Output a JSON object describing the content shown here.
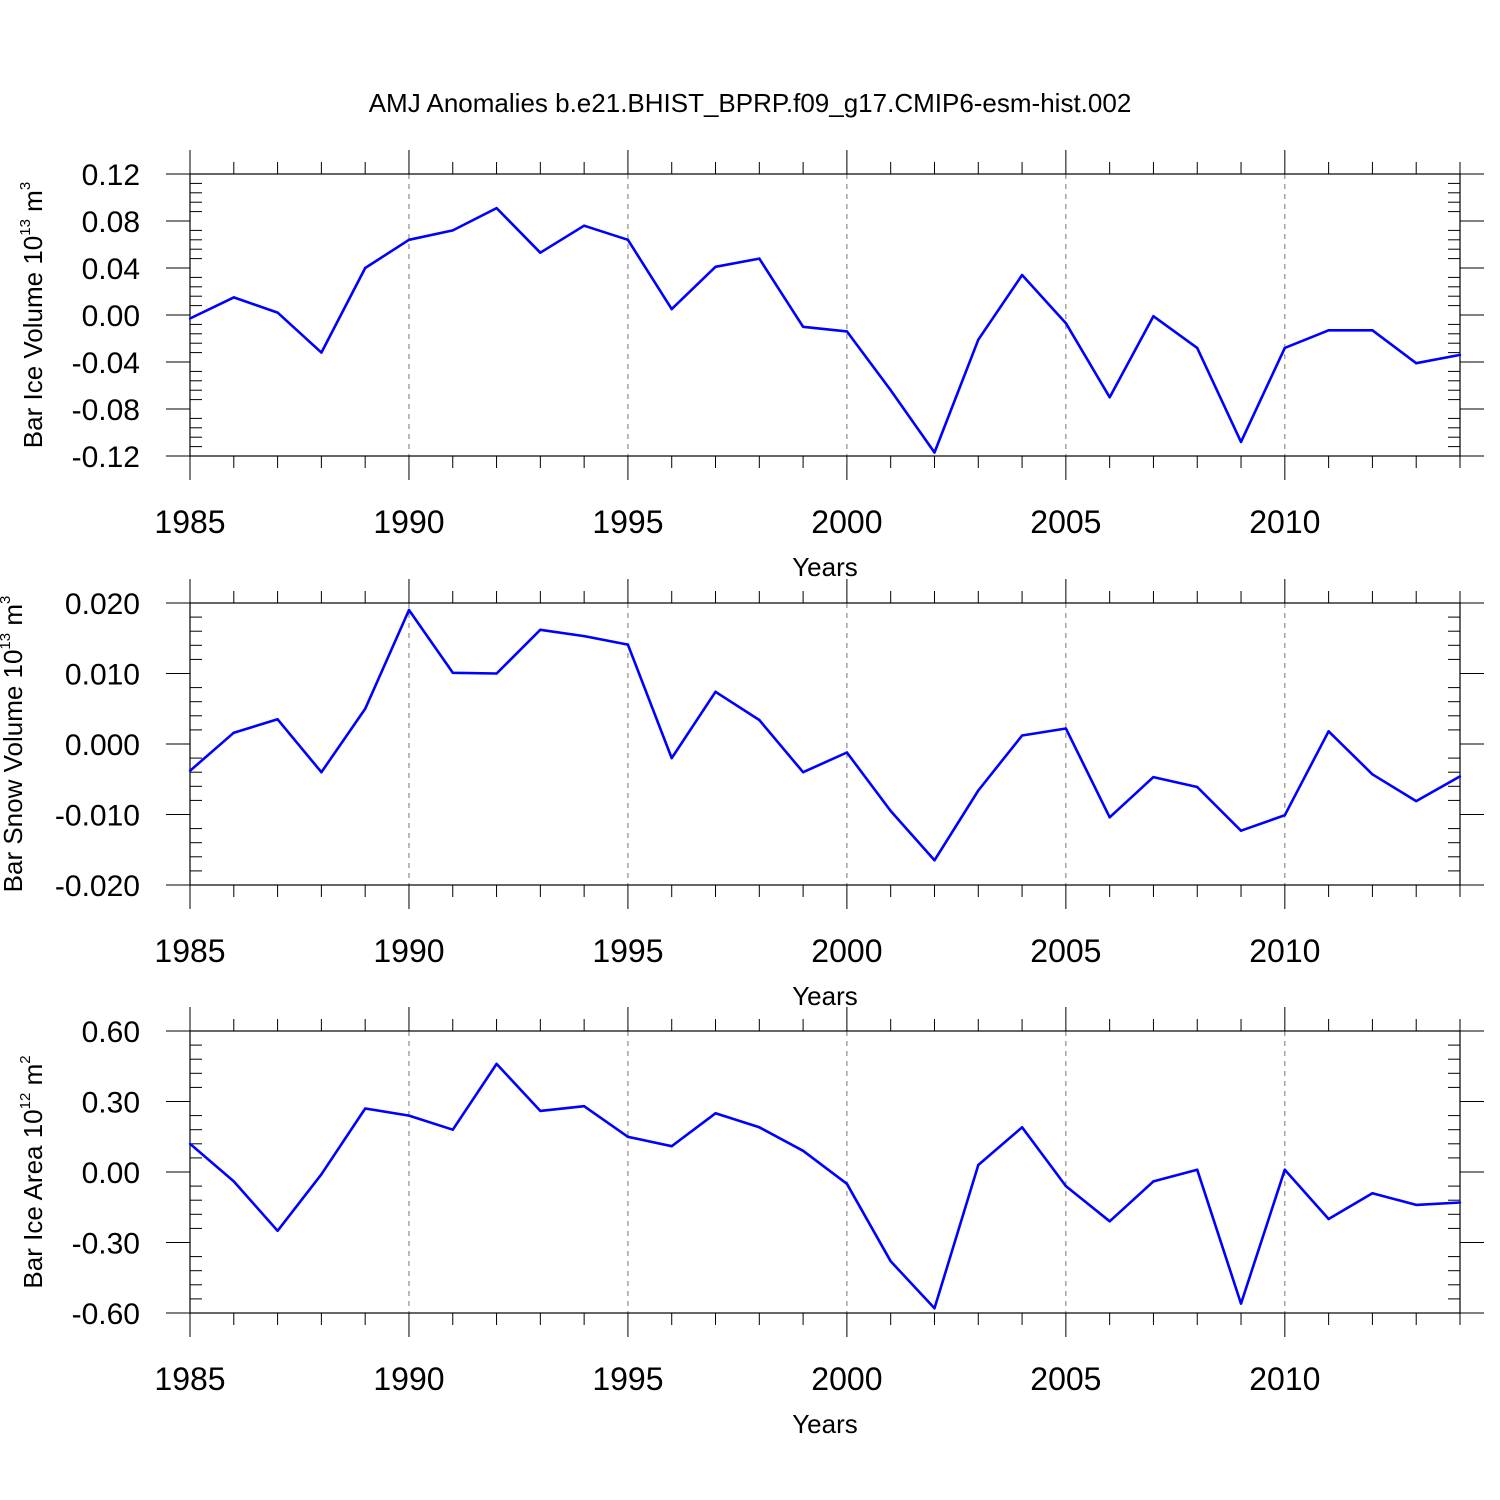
{
  "title": "AMJ Anomalies b.e21.BHIST_BPRP.f09_g17.CMIP6-esm-hist.002",
  "chart_data": [
    {
      "type": "line",
      "ylabel": {
        "text": "Bar Ice Volume 10",
        "exp": "13",
        "unit": " m",
        "unit_exp": "3"
      },
      "xlabel": "Years",
      "xlim": [
        1985,
        2014
      ],
      "ylim": [
        -0.12,
        0.12
      ],
      "yticks": [
        "0.12",
        "0.08",
        "0.04",
        "0.00",
        "-0.04",
        "-0.08",
        "-0.12"
      ],
      "ytick_values": [
        0.12,
        0.08,
        0.04,
        0.0,
        -0.04,
        -0.08,
        -0.12
      ],
      "xticks": [
        "1985",
        "1990",
        "1995",
        "2000",
        "2005",
        "2010"
      ],
      "xtick_values": [
        1985,
        1990,
        1995,
        2000,
        2005,
        2010
      ],
      "color": "#0000ff",
      "x": [
        1985,
        1986,
        1987,
        1988,
        1989,
        1990,
        1991,
        1992,
        1993,
        1994,
        1995,
        1996,
        1997,
        1998,
        1999,
        2000,
        2001,
        2002,
        2003,
        2004,
        2005,
        2006,
        2007,
        2008,
        2009,
        2010,
        2011,
        2012,
        2013,
        2014
      ],
      "y": [
        -0.003,
        0.015,
        0.002,
        -0.032,
        0.04,
        0.064,
        0.072,
        0.091,
        0.053,
        0.076,
        0.064,
        0.005,
        0.041,
        0.048,
        -0.01,
        -0.014,
        -0.064,
        -0.117,
        -0.021,
        0.034,
        -0.007,
        -0.07,
        -0.001,
        -0.028,
        -0.108,
        -0.028,
        -0.013,
        -0.013,
        -0.041,
        -0.034
      ]
    },
    {
      "type": "line",
      "ylabel": {
        "text": "Bar Snow Volume 10",
        "exp": "13",
        "unit": " m",
        "unit_exp": "3"
      },
      "xlabel": "Years",
      "xlim": [
        1985,
        2014
      ],
      "ylim": [
        -0.02,
        0.02
      ],
      "yticks": [
        "0.020",
        "0.010",
        "0.000",
        "-0.010",
        "-0.020"
      ],
      "ytick_values": [
        0.02,
        0.01,
        0.0,
        -0.01,
        -0.02
      ],
      "xticks": [
        "1985",
        "1990",
        "1995",
        "2000",
        "2005",
        "2010"
      ],
      "xtick_values": [
        1985,
        1990,
        1995,
        2000,
        2005,
        2010
      ],
      "color": "#0000ff",
      "x": [
        1985,
        1986,
        1987,
        1988,
        1989,
        1990,
        1991,
        1992,
        1993,
        1994,
        1995,
        1996,
        1997,
        1998,
        1999,
        2000,
        2001,
        2002,
        2003,
        2004,
        2005,
        2006,
        2007,
        2008,
        2009,
        2010,
        2011,
        2012,
        2013,
        2014
      ],
      "y": [
        -0.0038,
        0.0016,
        0.0035,
        -0.004,
        0.005,
        0.019,
        0.0101,
        0.01,
        0.0162,
        0.0153,
        0.0141,
        -0.002,
        0.0074,
        0.0034,
        -0.004,
        -0.0012,
        -0.0095,
        -0.0165,
        -0.0066,
        0.0012,
        0.0022,
        -0.0104,
        -0.0047,
        -0.0061,
        -0.0123,
        -0.0101,
        0.0018,
        -0.0043,
        -0.0081,
        -0.0046
      ]
    },
    {
      "type": "line",
      "ylabel": {
        "text": "Bar Ice Area 10",
        "exp": "12",
        "unit": " m",
        "unit_exp": "2"
      },
      "xlabel": "Years",
      "xlim": [
        1985,
        2014
      ],
      "ylim": [
        -0.6,
        0.6
      ],
      "yticks": [
        "0.60",
        "0.30",
        "0.00",
        "-0.30",
        "-0.60"
      ],
      "ytick_values": [
        0.6,
        0.3,
        0.0,
        -0.3,
        -0.6
      ],
      "xticks": [
        "1985",
        "1990",
        "1995",
        "2000",
        "2005",
        "2010"
      ],
      "xtick_values": [
        1985,
        1990,
        1995,
        2000,
        2005,
        2010
      ],
      "color": "#0000ff",
      "x": [
        1985,
        1986,
        1987,
        1988,
        1989,
        1990,
        1991,
        1992,
        1993,
        1994,
        1995,
        1996,
        1997,
        1998,
        1999,
        2000,
        2001,
        2002,
        2003,
        2004,
        2005,
        2006,
        2007,
        2008,
        2009,
        2010,
        2011,
        2012,
        2013,
        2014
      ],
      "y": [
        0.12,
        -0.04,
        -0.25,
        -0.01,
        0.27,
        0.24,
        0.18,
        0.46,
        0.26,
        0.28,
        0.15,
        0.11,
        0.25,
        0.19,
        0.09,
        -0.05,
        -0.38,
        -0.58,
        0.03,
        0.19,
        -0.06,
        -0.21,
        -0.04,
        0.01,
        -0.56,
        0.01,
        -0.2,
        -0.09,
        -0.14,
        -0.13
      ]
    }
  ]
}
